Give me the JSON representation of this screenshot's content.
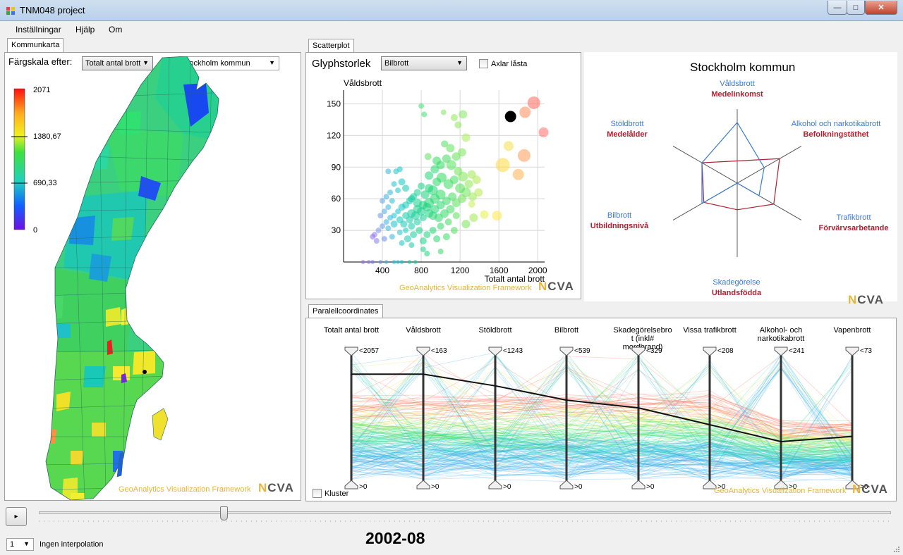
{
  "window": {
    "title": "TNM048 project",
    "minimize": "—",
    "maximize": "□",
    "close": "✕"
  },
  "menu": [
    "Inställningar",
    "Hjälp",
    "Om"
  ],
  "left": {
    "tab": "Kommunkarta",
    "color_label": "Färgskala efter:",
    "color_combo": "Totalt antal brott",
    "region_combo": "Stockholm kommun",
    "legend": {
      "max": "2071",
      "mid_high": "1380,67",
      "mid_low": "690,33",
      "min": "0"
    },
    "framework": "GeoAnalytics Visualization Framework",
    "logo": "NCVA"
  },
  "scatter": {
    "tab": "Scatterplot",
    "glyph_label": "Glyphstorlek",
    "glyph_combo": "Bilbrott",
    "lock_label": "Axlar låsta",
    "framework": "GeoAnalytics Visualization Framework",
    "logo": "NCVA"
  },
  "chart_data": {
    "type": "scatter",
    "xlabel": "Totalt antal brott",
    "ylabel": "Våldsbrott",
    "xlim": [
      0,
      2071
    ],
    "ylim": [
      0,
      163
    ],
    "xticks": [
      "400",
      "800",
      "1200",
      "1600",
      "2000"
    ],
    "yticks": [
      "30",
      "60",
      "90",
      "120",
      "150"
    ],
    "points": [
      [
        1720,
        138,
        8,
        "#000000"
      ],
      [
        1960,
        151,
        9,
        "#ff6a5a"
      ],
      [
        1870,
        142,
        8,
        "#ff8a55"
      ],
      [
        2060,
        123,
        7,
        "#ff6a6a"
      ],
      [
        1860,
        101,
        9,
        "#ff9a55"
      ],
      [
        1800,
        83,
        8,
        "#ffb050"
      ],
      [
        1640,
        92,
        10,
        "#ffd840"
      ],
      [
        1580,
        44,
        7,
        "#ffe845"
      ],
      [
        1450,
        45,
        6,
        "#e8f045"
      ],
      [
        1320,
        55,
        5,
        "#c8f050"
      ],
      [
        1700,
        110,
        7,
        "#f0e048"
      ],
      [
        1230,
        140,
        6,
        "#80e860"
      ],
      [
        1140,
        137,
        5,
        "#90ea58"
      ],
      [
        1260,
        118,
        6,
        "#a8ec55"
      ],
      [
        1180,
        130,
        5,
        "#8ce85a"
      ],
      [
        1030,
        142,
        4,
        "#7ee660"
      ],
      [
        830,
        140,
        4,
        "#40e070"
      ],
      [
        800,
        148,
        4,
        "#40e070"
      ],
      [
        870,
        100,
        5,
        "#60e060"
      ],
      [
        1040,
        112,
        5,
        "#50e060"
      ],
      [
        1100,
        108,
        6,
        "#60e458"
      ],
      [
        960,
        96,
        6,
        "#30dc60"
      ],
      [
        1110,
        92,
        7,
        "#50e25a"
      ],
      [
        1180,
        86,
        6,
        "#70e455"
      ],
      [
        1230,
        81,
        7,
        "#80e655"
      ],
      [
        1320,
        83,
        6,
        "#a0e850"
      ],
      [
        1370,
        78,
        6,
        "#b0ea50"
      ],
      [
        1390,
        66,
        6,
        "#b8ea50"
      ],
      [
        1330,
        62,
        6,
        "#9ee852"
      ],
      [
        1290,
        74,
        6,
        "#8ee654"
      ],
      [
        1260,
        66,
        7,
        "#6ee455"
      ],
      [
        1200,
        70,
        7,
        "#50e05a"
      ],
      [
        1140,
        78,
        6,
        "#40de5c"
      ],
      [
        1080,
        74,
        7,
        "#38dc5e"
      ],
      [
        1010,
        80,
        7,
        "#30da60"
      ],
      [
        960,
        76,
        6,
        "#28d866"
      ],
      [
        920,
        68,
        7,
        "#20d670"
      ],
      [
        880,
        70,
        6,
        "#1ad476"
      ],
      [
        840,
        64,
        6,
        "#18d27e"
      ],
      [
        800,
        72,
        5,
        "#16d086"
      ],
      [
        760,
        66,
        5,
        "#14ce8e"
      ],
      [
        720,
        62,
        5,
        "#12cc98"
      ],
      [
        680,
        58,
        5,
        "#10caa6"
      ],
      [
        640,
        54,
        5,
        "#10c8b4"
      ],
      [
        600,
        52,
        5,
        "#10c6c2"
      ],
      [
        560,
        48,
        4,
        "#12c4cc"
      ],
      [
        520,
        44,
        4,
        "#18c0d4"
      ],
      [
        480,
        42,
        4,
        "#28b8dc"
      ],
      [
        440,
        38,
        4,
        "#40b0e0"
      ],
      [
        400,
        34,
        4,
        "#5ca0e4"
      ],
      [
        360,
        30,
        4,
        "#7890e8"
      ],
      [
        320,
        26,
        4,
        "#8c80ec"
      ],
      [
        300,
        24,
        4,
        "#9070ee"
      ],
      [
        340,
        20,
        4,
        "#8080ec"
      ],
      [
        420,
        22,
        4,
        "#6c90e6"
      ],
      [
        500,
        24,
        4,
        "#3cb0de"
      ],
      [
        580,
        28,
        4,
        "#20c2d0"
      ],
      [
        640,
        30,
        4,
        "#14c8be"
      ],
      [
        700,
        34,
        5,
        "#12cca8"
      ],
      [
        760,
        38,
        5,
        "#14cea0"
      ],
      [
        820,
        42,
        5,
        "#16d090"
      ],
      [
        880,
        46,
        6,
        "#1ad480"
      ],
      [
        940,
        50,
        6,
        "#20d674"
      ],
      [
        1000,
        54,
        6,
        "#28d86c"
      ],
      [
        1060,
        58,
        6,
        "#34da64"
      ],
      [
        1120,
        62,
        6,
        "#44dc5e"
      ],
      [
        1000,
        64,
        7,
        "#30da62"
      ],
      [
        940,
        60,
        7,
        "#26d86a"
      ],
      [
        880,
        56,
        7,
        "#1ed472"
      ],
      [
        820,
        54,
        6,
        "#1ad27c"
      ],
      [
        760,
        50,
        6,
        "#16d08a"
      ],
      [
        700,
        46,
        6,
        "#14ce96"
      ],
      [
        640,
        44,
        5,
        "#12caa8"
      ],
      [
        580,
        40,
        5,
        "#12c6bc"
      ],
      [
        520,
        36,
        5,
        "#18c2cc"
      ],
      [
        460,
        32,
        4,
        "#30b4da"
      ],
      [
        620,
        36,
        5,
        "#14c8b6"
      ],
      [
        680,
        40,
        5,
        "#12ccaa"
      ],
      [
        740,
        44,
        6,
        "#14ce9a"
      ],
      [
        800,
        48,
        6,
        "#16d08c"
      ],
      [
        860,
        52,
        6,
        "#1ad47e"
      ],
      [
        920,
        44,
        6,
        "#20d672"
      ],
      [
        980,
        42,
        6,
        "#26d86c"
      ],
      [
        1040,
        46,
        6,
        "#30da64"
      ],
      [
        1100,
        50,
        6,
        "#3edc5e"
      ],
      [
        1160,
        56,
        6,
        "#56e05a"
      ],
      [
        1220,
        60,
        6,
        "#6ee455"
      ],
      [
        1160,
        44,
        5,
        "#58e058"
      ],
      [
        1080,
        38,
        5,
        "#3edc5e"
      ],
      [
        1000,
        34,
        5,
        "#2ed866"
      ],
      [
        920,
        30,
        5,
        "#22d470"
      ],
      [
        860,
        26,
        5,
        "#1cd27c"
      ],
      [
        780,
        30,
        5,
        "#16d08a"
      ],
      [
        720,
        26,
        5,
        "#14cc9c"
      ],
      [
        660,
        22,
        5,
        "#12c8b0"
      ],
      [
        600,
        18,
        4,
        "#14c4c4"
      ],
      [
        700,
        16,
        4,
        "#14cca4"
      ],
      [
        820,
        20,
        5,
        "#18d286"
      ],
      [
        960,
        22,
        5,
        "#26d86c"
      ],
      [
        1060,
        24,
        5,
        "#36da62"
      ],
      [
        1140,
        30,
        5,
        "#4ede5a"
      ],
      [
        1260,
        36,
        6,
        "#78e456"
      ],
      [
        1340,
        42,
        6,
        "#9ee852"
      ],
      [
        760,
        56,
        6,
        "#16d08a"
      ],
      [
        700,
        60,
        5,
        "#12cca0"
      ],
      [
        880,
        82,
        6,
        "#20d672"
      ],
      [
        940,
        88,
        6,
        "#26d86a"
      ],
      [
        1000,
        92,
        6,
        "#2eda62"
      ],
      [
        1060,
        98,
        6,
        "#40dc5c"
      ],
      [
        1160,
        100,
        6,
        "#60e258"
      ],
      [
        1220,
        104,
        6,
        "#78e656"
      ],
      [
        640,
        70,
        5,
        "#12c8b0"
      ],
      [
        600,
        76,
        5,
        "#14c6c0"
      ],
      [
        560,
        68,
        4,
        "#16c4ca"
      ],
      [
        520,
        74,
        4,
        "#1ec0d2"
      ],
      [
        480,
        66,
        4,
        "#30b6da"
      ],
      [
        540,
        86,
        4,
        "#1cc2ce"
      ],
      [
        580,
        88,
        4,
        "#16c4c6"
      ],
      [
        460,
        86,
        4,
        "#36b2dc"
      ],
      [
        500,
        58,
        4,
        "#24bcd6"
      ],
      [
        460,
        52,
        4,
        "#34b2dc"
      ],
      [
        420,
        48,
        4,
        "#4ea8e2"
      ],
      [
        380,
        44,
        4,
        "#6a98e6"
      ],
      [
        400,
        58,
        4,
        "#5aa2e4"
      ],
      [
        440,
        62,
        4,
        "#44acdf"
      ],
      [
        300,
        0,
        3,
        "#7a7aec"
      ],
      [
        380,
        0,
        3,
        "#6a90e6"
      ],
      [
        440,
        0,
        3,
        "#50a8e0"
      ],
      [
        520,
        0,
        3,
        "#2cbad8"
      ],
      [
        560,
        0,
        3,
        "#1cc2ce"
      ],
      [
        600,
        0,
        3,
        "#14c6c2"
      ],
      [
        200,
        0,
        3,
        "#9a6aee"
      ],
      [
        260,
        0,
        3,
        "#8a74ec"
      ],
      [
        680,
        0,
        3,
        "#12caa8"
      ],
      [
        740,
        0,
        3,
        "#14cc9a"
      ],
      [
        860,
        8,
        4,
        "#1cd27c"
      ],
      [
        820,
        12,
        4,
        "#18d086"
      ],
      [
        1000,
        10,
        4,
        "#2ed866"
      ]
    ]
  },
  "radar": {
    "title": "Stockholm kommun",
    "axes": [
      {
        "crime": "Våldsbrott",
        "demo": "Medelinkomst"
      },
      {
        "crime": "Alkohol och narkotikabrott",
        "demo": "Befolkningstäthet"
      },
      {
        "crime": "Trafikbrott",
        "demo": "Förvärvsarbetande"
      },
      {
        "crime": "Skadegörelse",
        "demo": "Utlandsfödda"
      },
      {
        "crime": "Bilbrott",
        "demo": "Utbildningsnivå"
      },
      {
        "crime": "Stöldbrott",
        "demo": "Medelålder"
      }
    ],
    "crime_values": [
      0.82,
      0.42,
      0.34,
      0.0,
      0.55,
      0.55
    ],
    "demo_values": [
      0.3,
      0.66,
      0.57,
      0.36,
      0.52,
      0.55
    ],
    "logo": "NCVA"
  },
  "parallel": {
    "tab": "Paralellcoordinates",
    "cluster_label": "Kluster",
    "framework": "GeoAnalytics Visualization Framework",
    "logo": "NCVA",
    "axes": [
      {
        "name": "Totalt antal brott",
        "max": "<2057",
        "min": ">0",
        "value": 0.83
      },
      {
        "name": "Våldsbrott",
        "max": "<163",
        "min": ">0",
        "value": 0.83
      },
      {
        "name": "Stöldbrott",
        "max": "<1243",
        "min": ">0",
        "value": 0.74
      },
      {
        "name": "Bilbrott",
        "max": "<539",
        "min": ">0",
        "value": 0.63
      },
      {
        "name": "Skadegörelsebrott (inkl# mordbrand)",
        "max": "<329",
        "min": ">0",
        "value": 0.57
      },
      {
        "name": "Vissa trafikbrott",
        "max": "<208",
        "min": ">0",
        "value": 0.44
      },
      {
        "name": "Alkohol- och narkotikabrott",
        "max": "<241",
        "min": ">0",
        "value": 0.31
      },
      {
        "name": "Vapenbrott",
        "max": "<73",
        "min": ">0",
        "value": 0.35
      }
    ]
  },
  "bottom": {
    "play": "▸",
    "date": "2002-08",
    "interp_combo": "1",
    "interp_label": "Ingen interpolation",
    "slider_value": 0.2
  }
}
